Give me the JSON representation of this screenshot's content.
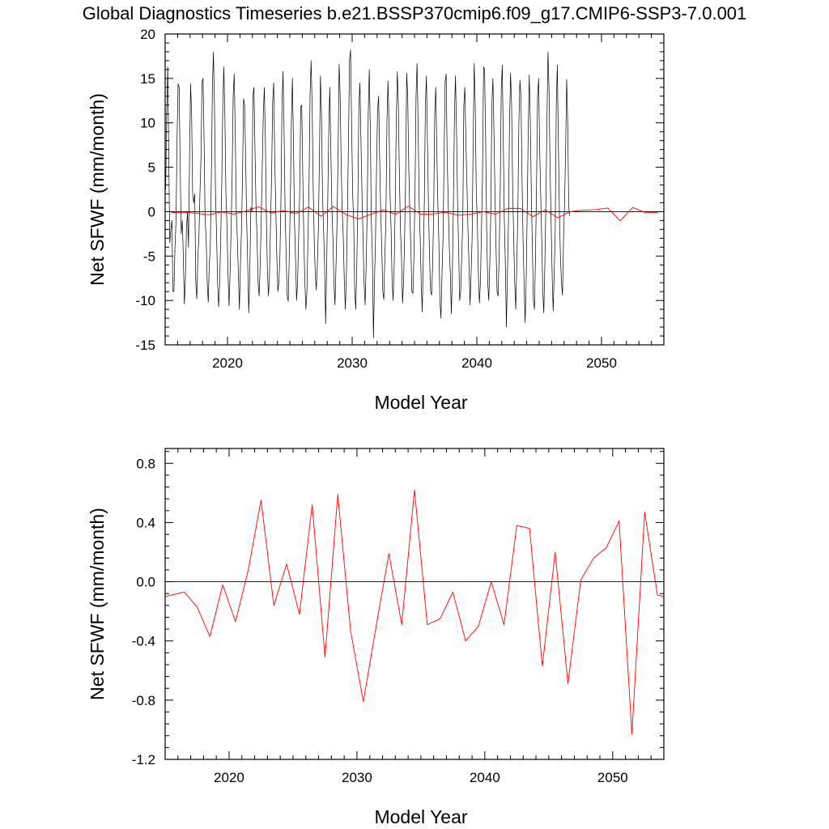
{
  "figure_title": "Global Diagnostics Timeseries b.e21.BSSP370cmip6.f09_g17.CMIP6-SSP3-7.0.001",
  "colors": {
    "monthly": "#000000",
    "annual": "#ff0000",
    "zero_line": "#000000"
  },
  "chart_data": [
    {
      "type": "line",
      "title": "",
      "xlabel": "Model Year",
      "ylabel": "Net SFWF (mm/month)",
      "xlim": [
        2015,
        2055
      ],
      "ylim": [
        -15,
        20
      ],
      "xticks": [
        2020,
        2030,
        2040,
        2050
      ],
      "xtick_labels": [
        "2020",
        "2030",
        "2040",
        "2050"
      ],
      "yticks": [
        -15,
        -10,
        -5,
        0,
        5,
        10,
        15,
        20
      ],
      "ytick_labels": [
        "-15",
        "-10",
        "-5",
        "0",
        "5",
        "10",
        "15",
        "20"
      ],
      "reference_line": 0,
      "series": [
        {
          "color": "#000000",
          "x_start": 2015.04,
          "x_step": 0.08333,
          "values": [
            2.5,
            11.0,
            16.3,
            6.0,
            -3.5,
            -2.0,
            -1.0,
            -9.0,
            -9.0,
            -4.0,
            -1.0,
            8.5,
            14.4,
            14.0,
            5.0,
            -2.5,
            -1.0,
            -5.0,
            -10.4,
            -7.5,
            -2.0,
            0.0,
            -4.0,
            6.0,
            14.4,
            11.0,
            2.0,
            1.0,
            2.0,
            -8.0,
            -9.8,
            -5.0,
            -3.0,
            2.0,
            6.0,
            14.6,
            15.0,
            8.0,
            -1.0,
            -3.0,
            -8.0,
            -10.2,
            -6.0,
            -4.0,
            4.0,
            14.0,
            18.0,
            12.0,
            2.0,
            -2.5,
            -8.0,
            -10.7,
            -8.0,
            -3.0,
            3.0,
            12.0,
            16.3,
            11.0,
            2.0,
            -1.5,
            -7.0,
            -10.6,
            -7.0,
            -2.0,
            4.0,
            13.0,
            15.5,
            9.0,
            0.0,
            -3.0,
            -7.0,
            -11.0,
            -6.0,
            -2.0,
            4.0,
            12.7,
            12.0,
            6.0,
            -1.0,
            -6.0,
            -11.4,
            -7.0,
            0.5,
            0.0,
            13.0,
            14.0,
            7.0,
            0.5,
            -3.0,
            -8.0,
            -9.5,
            -6.0,
            -1.0,
            5.0,
            11.0,
            14.0,
            8.0,
            -1.0,
            -7.0,
            -9.5,
            -7.0,
            -1.0,
            4.0,
            12.4,
            14.5,
            6.0,
            0.5,
            -5.0,
            -9.0,
            -8.0,
            -5.0,
            1.5,
            12.0,
            15.8,
            9.0,
            0.0,
            -5.0,
            -9.5,
            -10.1,
            -5.0,
            1.0,
            10.0,
            15.0,
            8.0,
            -1.0,
            -5.0,
            -10.0,
            -8.0,
            -3.0,
            2.0,
            11.8,
            12.0,
            4.0,
            -3.0,
            -8.0,
            -11.0,
            -9.0,
            -3.0,
            3.0,
            13.0,
            17.0,
            12.0,
            3.0,
            -3.0,
            -7.0,
            -8.8,
            -6.0,
            -2.0,
            6.0,
            15.3,
            11.0,
            2.0,
            -2.0,
            -6.0,
            -12.6,
            -6.0,
            1.0,
            9.0,
            14.0,
            7.0,
            0.5,
            -3.0,
            -8.0,
            -10.5,
            -6.0,
            -1.0,
            7.0,
            16.6,
            13.0,
            5.0,
            0.0,
            -3.0,
            -8.0,
            -11.0,
            -7.0,
            0.0,
            8.0,
            17.0,
            18.2,
            10.0,
            2.0,
            -1.0,
            -9.0,
            -11.0,
            -6.0,
            1.0,
            12.0,
            14.5,
            8.0,
            2.0,
            -3.0,
            -8.0,
            -10.5,
            -6.0,
            0.0,
            11.0,
            16.0,
            9.0,
            -1.0,
            -5.0,
            -14.2,
            -8.0,
            -3.0,
            5.0,
            11.5,
            13.0,
            6.0,
            0.0,
            -4.0,
            -9.0,
            -9.9,
            -5.0,
            -1.0,
            10.0,
            14.7,
            10.0,
            2.0,
            -2.0,
            -8.0,
            -10.0,
            -6.0,
            1.0,
            10.0,
            15.8,
            12.0,
            4.0,
            -2.0,
            -5.0,
            -10.3,
            -8.0,
            -3.0,
            4.0,
            15.6,
            13.0,
            5.0,
            0.0,
            -4.0,
            -9.0,
            -9.2,
            -5.0,
            2.0,
            13.0,
            16.7,
            10.0,
            1.0,
            -3.0,
            -8.0,
            -11.3,
            -5.0,
            1.0,
            12.0,
            15.3,
            8.0,
            0.5,
            -5.0,
            -9.0,
            -9.4,
            -6.0,
            0.0,
            11.0,
            14.0,
            7.0,
            1.0,
            -3.5,
            -10.0,
            -12.0,
            -7.0,
            -3.0,
            6.0,
            14.6,
            15.5,
            6.0,
            1.0,
            -4.0,
            -7.0,
            -11.5,
            -7.0,
            1.0,
            11.0,
            15.3,
            9.0,
            1.0,
            -4.0,
            -10.0,
            -9.0,
            -5.0,
            -1.0,
            12.0,
            14.0,
            8.0,
            3.0,
            -2.0,
            -6.0,
            -10.5,
            -7.0,
            -3.0,
            8.0,
            16.7,
            12.0,
            2.0,
            -1.0,
            -7.0,
            -10.3,
            -8.0,
            -2.0,
            4.0,
            16.3,
            16.0,
            8.0,
            -2.0,
            -8.0,
            -10.0,
            -6.0,
            0.0,
            12.0,
            15.0,
            9.0,
            2.0,
            -4.0,
            -9.0,
            -9.5,
            -5.0,
            2.0,
            13.5,
            16.5,
            8.0,
            -1.0,
            -6.0,
            -13.0,
            -7.0,
            -1.0,
            10.0,
            15.6,
            12.0,
            3.0,
            -3.0,
            -8.0,
            -11.0,
            -6.0,
            0.0,
            10.0,
            14.8,
            13.0,
            4.0,
            -3.0,
            -8.0,
            -12.5,
            -8.0,
            0.0,
            9.0,
            15.4,
            10.0,
            2.0,
            -4.0,
            -10.0,
            -11.0,
            -5.0,
            3.0,
            13.0,
            15.0,
            7.0,
            2.0,
            -3.0,
            -9.0,
            -11.4,
            -6.0,
            1.0,
            10.0,
            18.0,
            14.0,
            5.0,
            -1.0,
            -7.0,
            -11.2,
            -7.0,
            -2.0,
            12.0,
            16.5,
            8.0,
            0.0,
            -5.0,
            -8.0,
            -9.4,
            -3.0,
            1.0,
            7.0,
            14.9,
            10.0,
            0.5,
            -0.5
          ]
        },
        {
          "color": "#ff0000",
          "x": [
            2015.5,
            2016.5,
            2017.5,
            2018.5,
            2019.5,
            2020.5,
            2021.5,
            2022.5,
            2023.5,
            2024.5,
            2025.5,
            2026.5,
            2027.5,
            2028.5,
            2029.5,
            2030.5,
            2031.5,
            2032.5,
            2033.5,
            2034.5,
            2035.5,
            2036.5,
            2037.5,
            2038.5,
            2039.5,
            2040.5,
            2041.5,
            2042.5,
            2043.5,
            2044.5,
            2045.5,
            2046.5,
            2047.5,
            2048.5,
            2049.5,
            2050.5,
            2051.5,
            2052.5,
            2053.5,
            2054.5
          ],
          "values": [
            -0.1,
            -0.07,
            -0.17,
            -0.37,
            -0.02,
            -0.27,
            0.08,
            0.55,
            -0.16,
            0.12,
            -0.22,
            0.52,
            -0.51,
            0.59,
            -0.33,
            -0.81,
            -0.3,
            0.19,
            -0.29,
            0.62,
            -0.29,
            -0.25,
            -0.07,
            -0.4,
            -0.3,
            0.0,
            -0.29,
            0.38,
            0.36,
            -0.57,
            0.2,
            -0.69,
            0.01,
            0.16,
            0.23,
            0.41,
            -1.03,
            0.47,
            -0.09,
            -0.1
          ]
        }
      ]
    },
    {
      "type": "line",
      "title": "",
      "xlabel": "Model Year",
      "ylabel": "Net SFWF (mm/month)",
      "xlim": [
        2015,
        2054
      ],
      "ylim": [
        -1.2,
        0.9
      ],
      "xticks": [
        2020,
        2030,
        2040,
        2050
      ],
      "xtick_labels": [
        "2020",
        "2030",
        "2040",
        "2050"
      ],
      "yticks": [
        -1.2,
        -0.8,
        -0.4,
        0.0,
        0.4,
        0.8
      ],
      "ytick_labels": [
        "-1.2",
        "-0.8",
        "-0.4",
        "0.0",
        "0.4",
        "0.8"
      ],
      "reference_line": 0,
      "series": [
        {
          "color": "#ff0000",
          "x": [
            2015.0,
            2016.5,
            2017.5,
            2018.5,
            2019.5,
            2020.5,
            2021.5,
            2022.5,
            2023.5,
            2024.5,
            2025.5,
            2026.5,
            2027.5,
            2028.5,
            2029.5,
            2030.5,
            2031.5,
            2032.5,
            2033.5,
            2034.5,
            2035.5,
            2036.5,
            2037.5,
            2038.5,
            2039.5,
            2040.5,
            2041.5,
            2042.5,
            2043.5,
            2044.5,
            2045.5,
            2046.5,
            2047.5,
            2048.5,
            2049.5,
            2050.5,
            2051.5,
            2052.5,
            2053.5,
            2054.0
          ],
          "values": [
            -0.1,
            -0.07,
            -0.17,
            -0.37,
            -0.02,
            -0.27,
            0.08,
            0.55,
            -0.16,
            0.12,
            -0.22,
            0.52,
            -0.51,
            0.59,
            -0.33,
            -0.81,
            -0.3,
            0.19,
            -0.29,
            0.62,
            -0.29,
            -0.25,
            -0.07,
            -0.4,
            -0.3,
            0.0,
            -0.29,
            0.38,
            0.36,
            -0.57,
            0.2,
            -0.69,
            0.01,
            0.16,
            0.23,
            0.41,
            -1.03,
            0.47,
            -0.09,
            -0.1
          ]
        }
      ]
    }
  ]
}
